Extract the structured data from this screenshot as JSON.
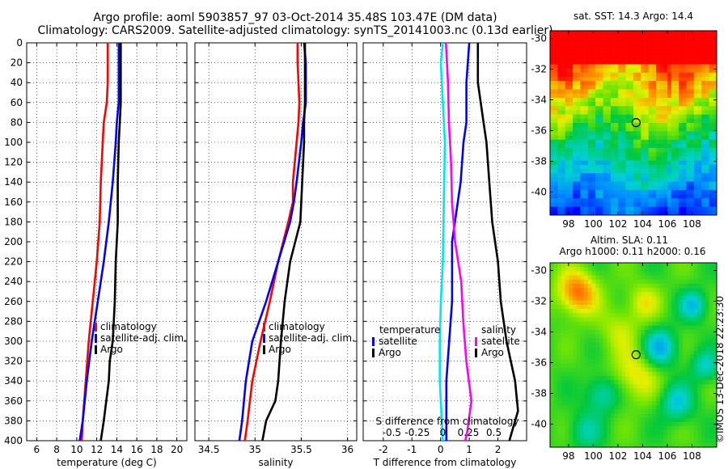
{
  "header": {
    "title_line1": "Argo profile: aoml 5903857_97 03-Oct-2014 35.48S 103.47E (DM data)",
    "title_line2": "Climatology: CARS2009. Satellite-adjusted climatology: synTS_20141003.nc (0.13d earlier)"
  },
  "colors": {
    "climatology": "#ff0000",
    "satellite": "#0000ff",
    "argo": "#000000",
    "salinity_diff": "#ff00ff",
    "temp_diff": "#00e5ee",
    "grid": "#000000"
  },
  "depth_axis": {
    "ticks": [
      0,
      20,
      40,
      60,
      80,
      100,
      120,
      140,
      160,
      180,
      200,
      220,
      240,
      260,
      280,
      300,
      320,
      340,
      360,
      380,
      400
    ],
    "ylim": [
      0,
      400
    ]
  },
  "chart_data": [
    {
      "type": "line",
      "id": "temperature",
      "xlabel": "temperature (deg C)",
      "xlim": [
        5,
        21
      ],
      "xticks": [
        6,
        8,
        10,
        12,
        14,
        16,
        18,
        20
      ],
      "xtick_labels": [
        "6",
        "8",
        "10",
        "12",
        "14",
        "16",
        "18",
        "20"
      ],
      "legend": {
        "placement": "lower-center",
        "entries": [
          "climatology",
          "satellite-adj. clim.",
          "Argo"
        ]
      },
      "series": [
        {
          "name": "climatology",
          "color": "#ff0000",
          "depth": [
            0,
            20,
            40,
            60,
            80,
            100,
            140,
            180,
            220,
            260,
            300,
            340,
            380,
            400
          ],
          "values": [
            13.1,
            13.1,
            13.1,
            13.0,
            12.7,
            12.6,
            12.4,
            12.3,
            12.0,
            11.6,
            11.2,
            10.9,
            10.6,
            10.5
          ]
        },
        {
          "name": "satellite-adj. clim.",
          "color": "#0000ff",
          "depth": [
            0,
            20,
            40,
            60,
            80,
            100,
            140,
            180,
            220,
            260,
            300,
            340,
            380,
            400
          ],
          "values": [
            14.2,
            14.2,
            14.2,
            14.2,
            14.0,
            13.9,
            13.6,
            13.2,
            12.7,
            12.1,
            11.5,
            11.0,
            10.6,
            10.3
          ]
        },
        {
          "name": "Argo",
          "color": "#000000",
          "depth": [
            0,
            20,
            40,
            60,
            80,
            100,
            140,
            180,
            220,
            260,
            300,
            320,
            340,
            380,
            400
          ],
          "values": [
            14.4,
            14.4,
            14.4,
            14.4,
            14.3,
            14.2,
            14.1,
            14.1,
            13.9,
            13.8,
            13.6,
            13.3,
            13.2,
            12.7,
            12.4
          ]
        }
      ]
    },
    {
      "type": "line",
      "id": "salinity",
      "xlabel": "salinity",
      "xlim": [
        34.35,
        36.1
      ],
      "xticks": [
        34.5,
        35,
        35.5,
        36
      ],
      "xtick_labels": [
        "34.5",
        "35",
        "35.5",
        "36"
      ],
      "legend": {
        "placement": "lower-right",
        "entries": [
          "climatology",
          "satellite-adj. clim.",
          "Argo"
        ]
      },
      "series": [
        {
          "name": "climatology",
          "color": "#ff0000",
          "depth": [
            0,
            20,
            40,
            60,
            80,
            100,
            140,
            160,
            180,
            220,
            260,
            300,
            340,
            380,
            400
          ],
          "values": [
            35.46,
            35.46,
            35.47,
            35.48,
            35.47,
            35.45,
            35.41,
            35.41,
            35.36,
            35.25,
            35.16,
            35.06,
            34.97,
            34.92,
            34.89
          ]
        },
        {
          "name": "satellite-adj. clim.",
          "color": "#0000ff",
          "depth": [
            0,
            20,
            40,
            60,
            80,
            100,
            140,
            160,
            180,
            220,
            260,
            300,
            340,
            380,
            400
          ],
          "values": [
            35.53,
            35.55,
            35.55,
            35.55,
            35.52,
            35.5,
            35.45,
            35.42,
            35.38,
            35.25,
            35.12,
            34.97,
            34.9,
            34.86,
            34.83
          ]
        },
        {
          "name": "Argo",
          "color": "#000000",
          "depth": [
            0,
            20,
            40,
            60,
            80,
            100,
            140,
            180,
            220,
            260,
            300,
            340,
            360,
            380,
            400
          ],
          "values": [
            35.54,
            35.54,
            35.54,
            35.54,
            35.53,
            35.53,
            35.51,
            35.49,
            35.38,
            35.32,
            35.28,
            35.25,
            35.22,
            35.12,
            35.08
          ]
        }
      ]
    },
    {
      "type": "line",
      "id": "differences",
      "xlabel": "T difference from climatology",
      "xlim": [
        -2.7,
        3.0
      ],
      "xticks": [
        -2,
        -1,
        0,
        1,
        2
      ],
      "xtick_labels": [
        "-2",
        "-1",
        "0",
        "1",
        "2"
      ],
      "top_axis": {
        "label": "S difference from climatology",
        "ticks": [
          -0.5,
          -0.25,
          0,
          0.25,
          0.5
        ],
        "tick_labels": [
          "-0.5",
          "-0.25",
          "0",
          "0.25",
          "0.5"
        ]
      },
      "legend": {
        "placement": "lower-center",
        "left_title": "temperature",
        "right_title": "salinity",
        "entries": [
          "satellite",
          "Argo"
        ]
      },
      "series": [
        {
          "name": "T satellite",
          "color": "#0000ff",
          "depth": [
            0,
            40,
            80,
            100,
            140,
            200,
            260,
            300,
            340,
            400
          ],
          "values": [
            1.0,
            0.9,
            0.9,
            0.8,
            0.7,
            0.4,
            0.4,
            0.3,
            0.2,
            0.2
          ]
        },
        {
          "name": "T Argo",
          "color": "#000000",
          "depth": [
            0,
            40,
            80,
            100,
            140,
            180,
            220,
            260,
            300,
            340,
            370,
            400
          ],
          "values": [
            1.3,
            1.3,
            1.5,
            1.6,
            1.7,
            1.8,
            2.0,
            2.1,
            2.3,
            2.6,
            2.7,
            2.4
          ]
        },
        {
          "name": "S satellite",
          "color": "#ff00ff",
          "depth": [
            0,
            40,
            80,
            120,
            160,
            200,
            240,
            280,
            320,
            360,
            390,
            400
          ],
          "values": [
            0.03,
            0.05,
            0.06,
            0.08,
            0.09,
            0.12,
            0.18,
            0.2,
            0.23,
            0.28,
            0.24,
            0.22
          ]
        },
        {
          "name": "S Argo",
          "color": "#00e5ee",
          "depth": [
            0,
            20,
            60,
            100,
            160,
            220,
            260,
            300,
            340,
            380,
            400
          ],
          "values": [
            0.0,
            -0.02,
            0.0,
            0.02,
            0.01,
            0.0,
            -0.02,
            -0.03,
            -0.03,
            -0.01,
            0.0
          ]
        }
      ]
    }
  ],
  "maps": {
    "sst": {
      "title": "sat. SST: 14.3 Argo: 14.4",
      "lat_ticks": [
        "-30",
        "-32",
        "-34",
        "-36",
        "-38",
        "-40"
      ],
      "lon_ticks": [
        "98",
        "100",
        "102",
        "104",
        "106",
        "108"
      ],
      "marker": {
        "lat": -35.48,
        "lon": 103.47
      },
      "lat_range": [
        -41.5,
        -29.5
      ],
      "lon_range": [
        96.5,
        110
      ]
    },
    "sla": {
      "title_line1": "Altim. SLA: 0.11",
      "title_line2": "Argo h1000: 0.11 h2000: 0.16",
      "lat_ticks": [
        "-30",
        "-32",
        "-34",
        "-36",
        "-38",
        "-40"
      ],
      "lon_ticks": [
        "98",
        "100",
        "102",
        "104",
        "106",
        "108"
      ],
      "marker": {
        "lat": -35.48,
        "lon": 103.47
      },
      "lat_range": [
        -41.5,
        -29.5
      ],
      "lon_range": [
        96.5,
        110
      ]
    }
  },
  "footer": {
    "credit": "©IMOS 13-Dec-2018 22:23:30"
  }
}
